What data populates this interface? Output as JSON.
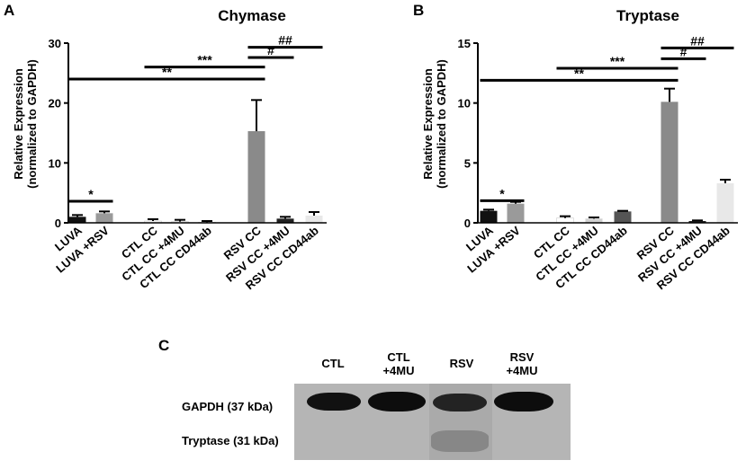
{
  "panels": {
    "a": "A",
    "b": "B",
    "c": "C"
  },
  "chart_data": [
    {
      "type": "bar",
      "title": "Chymase",
      "ylabel": "Relative Expression\n(normalized to GAPDH)",
      "ylim": [
        0,
        30
      ],
      "yticks": [
        0,
        10,
        20,
        30
      ],
      "categories": [
        "LUVA",
        "LUVA +RSV",
        "CTL CC",
        "CTL CC +4MU",
        "CTL CC CD44ab",
        "RSV CC",
        "RSV CC +4MU",
        "RSV CC CD44ab"
      ],
      "values": [
        1.0,
        1.6,
        0.3,
        0.2,
        0.1,
        15.3,
        0.7,
        1.2
      ],
      "errors": [
        0.3,
        0.3,
        0.3,
        0.3,
        0.2,
        5.2,
        0.3,
        0.6
      ],
      "colors": [
        "#111111",
        "#9a9a9a",
        "#ffffff",
        "#ffffff",
        "#ffffff",
        "#8a8a8a",
        "#222222",
        "#e8e8e8"
      ],
      "significance": [
        {
          "label": "*",
          "from": 0,
          "to": 1,
          "y": 3.6
        },
        {
          "label": "**",
          "from": 0,
          "to": 5,
          "y": 24.0
        },
        {
          "label": "***",
          "from": 2,
          "to": 5,
          "y": 26.0
        },
        {
          "label": "#",
          "from": 5,
          "to": 6,
          "y": 27.6
        },
        {
          "label": "##",
          "from": 5,
          "to": 7,
          "y": 29.3
        }
      ]
    },
    {
      "type": "bar",
      "title": "Tryptase",
      "ylabel": "Relative Expression\n(normalized to GAPDH)",
      "ylim": [
        0,
        15
      ],
      "yticks": [
        0,
        5,
        10,
        15
      ],
      "categories": [
        "LUVA",
        "LUVA +RSV",
        "CTL CC",
        "CTL CC +4MU",
        "CTL CC CD44ab",
        "RSV CC",
        "RSV CC +4MU",
        "RSV CC CD44ab"
      ],
      "values": [
        1.0,
        1.6,
        0.4,
        0.35,
        0.95,
        10.1,
        0.15,
        3.3
      ],
      "errors": [
        0.1,
        0.15,
        0.15,
        0.1,
        0.05,
        1.1,
        0.05,
        0.3
      ],
      "colors": [
        "#111111",
        "#9a9a9a",
        "#ffffff",
        "#d0d0d0",
        "#555555",
        "#8a8a8a",
        "#222222",
        "#e8e8e8"
      ],
      "significance": [
        {
          "label": "*",
          "from": 0,
          "to": 1,
          "y": 1.85
        },
        {
          "label": "**",
          "from": 0,
          "to": 5,
          "y": 11.9
        },
        {
          "label": "***",
          "from": 2,
          "to": 5,
          "y": 12.9
        },
        {
          "label": "#",
          "from": 5,
          "to": 6,
          "y": 13.7
        },
        {
          "label": "##",
          "from": 5,
          "to": 7,
          "y": 14.6
        }
      ]
    }
  ],
  "blot": {
    "columns": [
      "CTL",
      "CTL\n+4MU",
      "RSV",
      "RSV\n+4MU"
    ],
    "rows": [
      "GAPDH (37 kDa)",
      "Tryptase (31 kDa)"
    ]
  }
}
